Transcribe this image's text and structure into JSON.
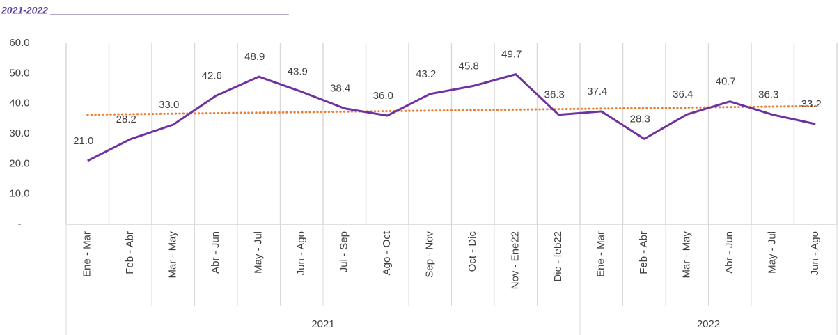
{
  "chart_data": {
    "type": "line",
    "title": "2021-2022 ____________________________________________",
    "categories": [
      "Ene - Mar",
      "Feb - Abr",
      "Mar - May",
      "Abr - Jun",
      "May - Jul",
      "Jun - Ago",
      "Jul - Sep",
      "Ago - Oct",
      "Sep - Nov",
      "Oct - Dic",
      "Nov - Ene22",
      "Dic - feb22",
      "Ene - Mar",
      "Feb - Abr",
      "Mar - May",
      "Abr - Jun",
      "May - Jul",
      "Jun - Ago"
    ],
    "groups": [
      {
        "name": "2021",
        "count": 12
      },
      {
        "name": "2022",
        "count": 6
      }
    ],
    "values": [
      21.0,
      28.2,
      33.0,
      42.6,
      48.9,
      43.9,
      38.4,
      36.0,
      43.2,
      45.8,
      49.7,
      36.3,
      37.4,
      28.3,
      36.4,
      40.7,
      36.3,
      33.2
    ],
    "value_labels": [
      "21.0",
      "28.2",
      "33.0",
      "42.6",
      "48.9",
      "43.9",
      "38.4",
      "36.0",
      "43.2",
      "45.8",
      "49.7",
      "36.3",
      "37.4",
      "28.3",
      "36.4",
      "40.7",
      "36.3",
      "33.2"
    ],
    "color": "#7030a0",
    "trendline": {
      "kind": "linear",
      "color": "#ed7d31"
    },
    "ylim": [
      0,
      60
    ],
    "yticks": [
      {
        "value": 0,
        "label": "-"
      },
      {
        "value": 10,
        "label": "10.0"
      },
      {
        "value": 20,
        "label": "20.0"
      },
      {
        "value": 30,
        "label": "30.0"
      },
      {
        "value": 40,
        "label": "40.0"
      },
      {
        "value": 50,
        "label": "50.0"
      },
      {
        "value": 60,
        "label": "60.0"
      }
    ],
    "grid": true
  }
}
